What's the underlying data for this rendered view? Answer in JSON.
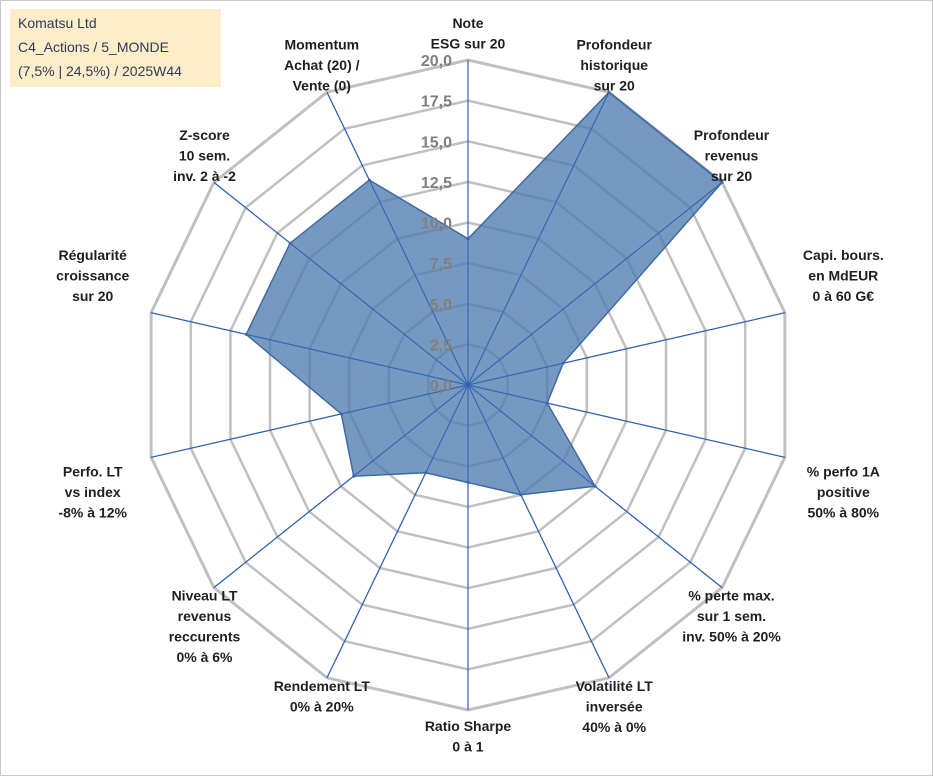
{
  "infobox": {
    "line1": "Komatsu Ltd",
    "line2": "C4_Actions / 5_MONDE",
    "line3": "(7,5% | 24,5%) / 2025W44"
  },
  "colors": {
    "fill": "#4f7cb0",
    "stroke": "#3f6aa0",
    "spoke": "#2f5fb3",
    "grid": "#c0c0c0",
    "infobox_bg": "#fdedc8"
  },
  "chart_data": {
    "type": "radar",
    "rmin": 0,
    "rmax": 20,
    "tick_labels": [
      "0,0",
      "2,5",
      "5,0",
      "7,5",
      "10,0",
      "12,5",
      "15,0",
      "17,5",
      "20,0"
    ],
    "axes": [
      {
        "lines": [
          "Note",
          "ESG sur 20"
        ],
        "value": 9.0
      },
      {
        "lines": [
          "Profondeur",
          "historique",
          "sur 20"
        ],
        "value": 20.0
      },
      {
        "lines": [
          "Profondeur",
          "revenus",
          "sur 20"
        ],
        "value": 20.0
      },
      {
        "lines": [
          "Capi. bours.",
          "en MdEUR",
          "0 à 60 G€"
        ],
        "value": 6.0
      },
      {
        "lines": [
          "% perfo 1A",
          "positive",
          "50% à 80%"
        ],
        "value": 5.0
      },
      {
        "lines": [
          "% perte max.",
          "sur 1 sem.",
          "inv. 50% à 20%"
        ],
        "value": 10.0
      },
      {
        "lines": [
          "Volatilité LT",
          "inversée",
          "40% à 0%"
        ],
        "value": 7.5
      },
      {
        "lines": [
          "Ratio Sharpe",
          "0 à 1"
        ],
        "value": 6.0
      },
      {
        "lines": [
          "Rendement LT",
          "0% à 20%"
        ],
        "value": 6.0
      },
      {
        "lines": [
          "Niveau LT",
          "revenus",
          "reccurents",
          "0% à 6%"
        ],
        "value": 9.0
      },
      {
        "lines": [
          "Perfo. LT",
          "vs index",
          "-8% à 12%"
        ],
        "value": 8.0
      },
      {
        "lines": [
          "Régularité",
          "croissance",
          "sur 20"
        ],
        "value": 14.0
      },
      {
        "lines": [
          "Z-score",
          "10 sem.",
          "inv. 2 à -2"
        ],
        "value": 14.0
      },
      {
        "lines": [
          "Momentum",
          "Achat (20) /",
          "Vente (0)"
        ],
        "value": 14.0
      }
    ]
  }
}
